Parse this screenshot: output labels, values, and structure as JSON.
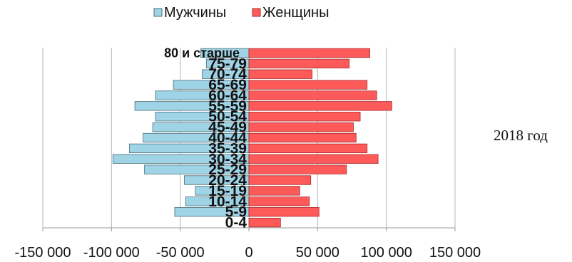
{
  "chart_data": {
    "type": "bar",
    "orientation": "horizontal",
    "categories": [
      "0-4",
      "5-9",
      "10-14",
      "15-19",
      "20-24",
      "25-29",
      "30-34",
      "35-39",
      "40-44",
      "45-49",
      "50-54",
      "55-59",
      "60-64",
      "65-69",
      "70-74",
      "75-79",
      "80 и старше"
    ],
    "series": [
      {
        "name": "Мужчины",
        "color": "#9fd3e6",
        "values": [
          0,
          -54000,
          -46000,
          -39000,
          -47000,
          -76000,
          -99000,
          -87000,
          -77000,
          -70000,
          -68000,
          -83000,
          -68000,
          -55000,
          -34000,
          -31000,
          -35000
        ]
      },
      {
        "name": "Женщины",
        "color": "#ff5a5a",
        "values": [
          23000,
          51000,
          44000,
          37000,
          45000,
          71000,
          94000,
          86000,
          78000,
          76000,
          81000,
          104000,
          93000,
          86000,
          46000,
          73000,
          88000
        ]
      }
    ],
    "x_ticks": [
      "-150 000",
      "-100 000",
      "-50 000",
      "0",
      "50 000",
      "100 000",
      "150 000"
    ],
    "xlim": [
      -150000,
      150000
    ],
    "grid": true,
    "legend_position": "top",
    "title": "",
    "xlabel": "",
    "ylabel": ""
  },
  "side_label": "2018 год"
}
